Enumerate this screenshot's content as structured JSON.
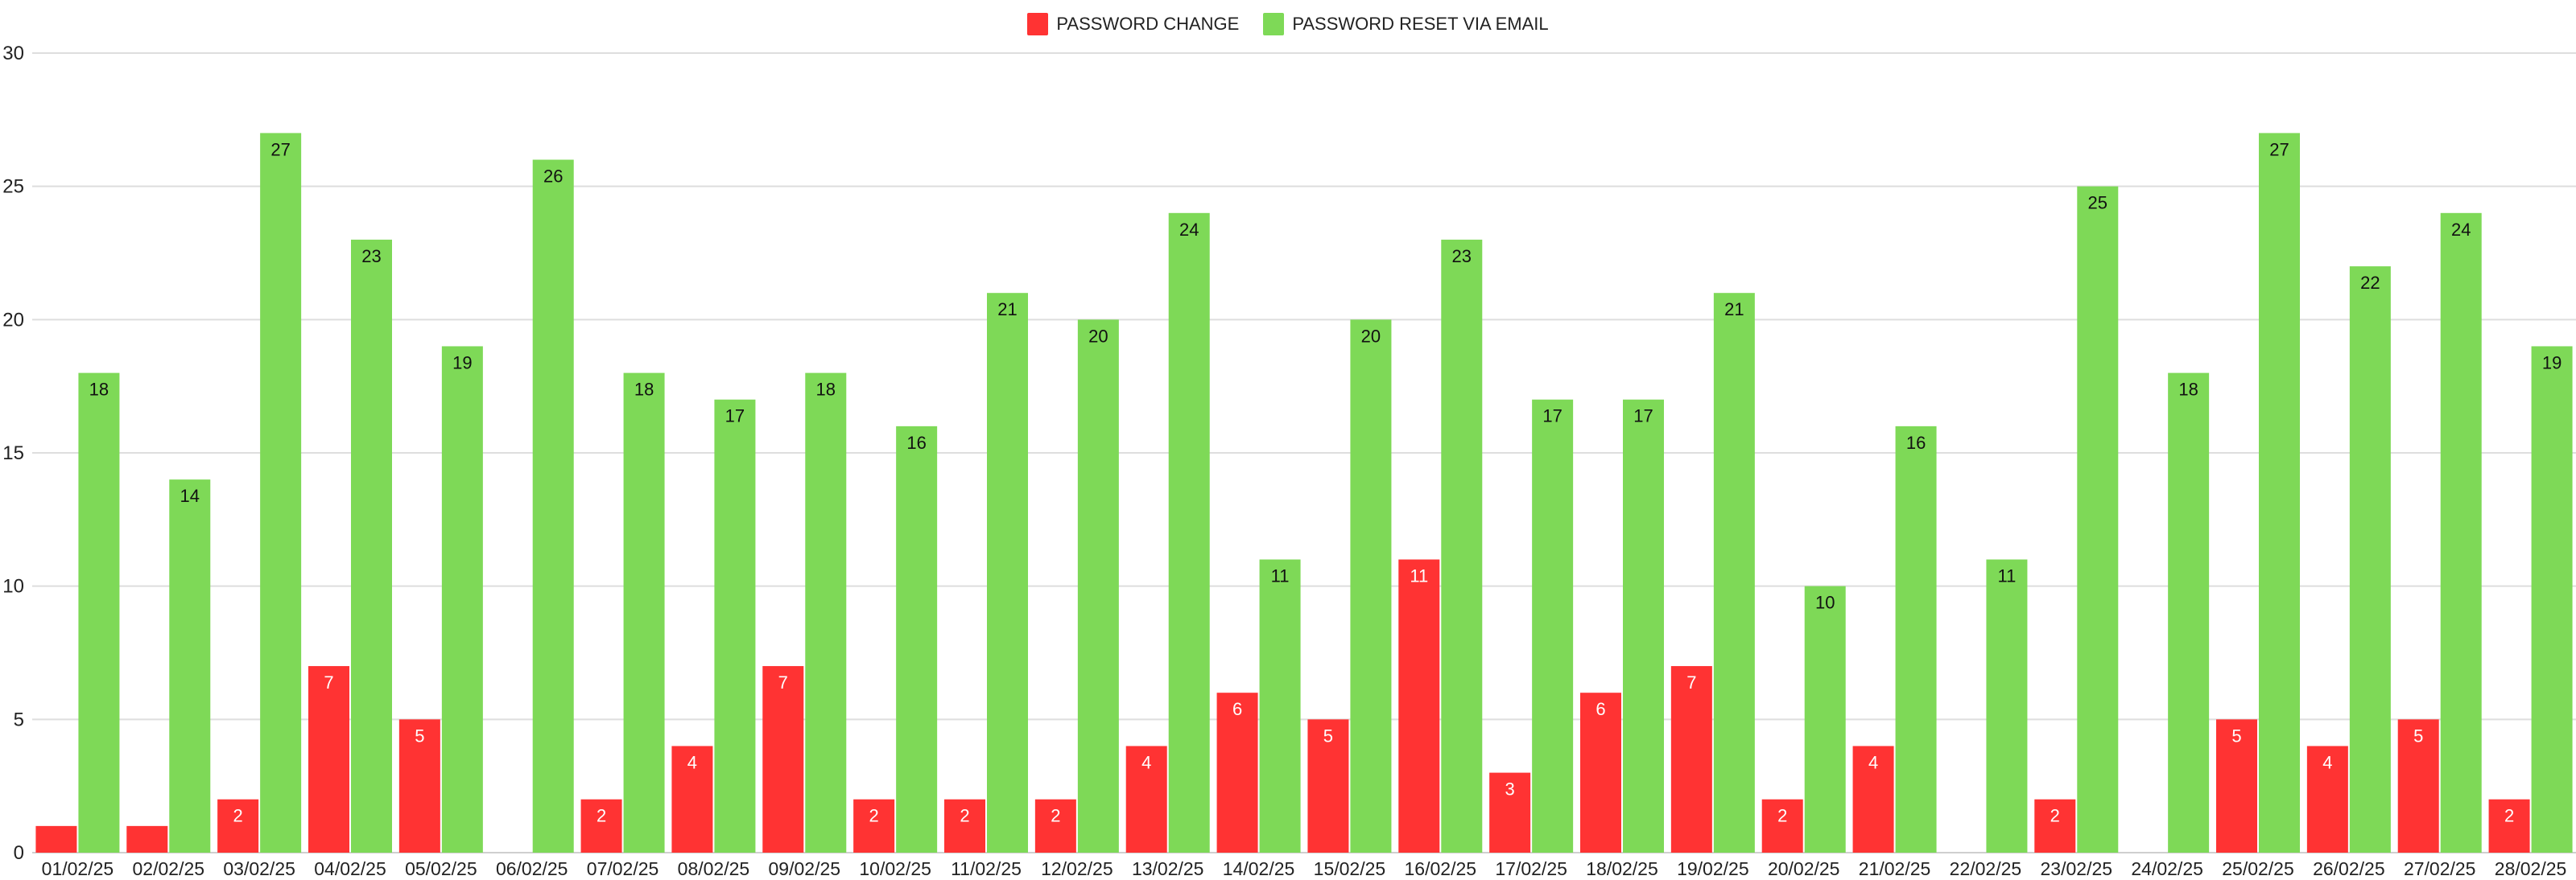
{
  "chart_data": {
    "type": "bar",
    "title": "",
    "xlabel": "",
    "ylabel": "",
    "ylim": [
      0,
      30
    ],
    "yticks": [
      0,
      5,
      10,
      15,
      20,
      25,
      30
    ],
    "grid": true,
    "legend_position": "top-center",
    "categories": [
      "01/02/25",
      "02/02/25",
      "03/02/25",
      "04/02/25",
      "05/02/25",
      "06/02/25",
      "07/02/25",
      "08/02/25",
      "09/02/25",
      "10/02/25",
      "11/02/25",
      "12/02/25",
      "13/02/25",
      "14/02/25",
      "15/02/25",
      "16/02/25",
      "17/02/25",
      "18/02/25",
      "19/02/25",
      "20/02/25",
      "21/02/25",
      "22/02/25",
      "23/02/25",
      "24/02/25",
      "25/02/25",
      "26/02/25",
      "27/02/25",
      "28/02/25"
    ],
    "series": [
      {
        "name": "PASSWORD CHANGE",
        "color": "#ff3333",
        "label_color": "#ffffff",
        "values": [
          1,
          1,
          2,
          7,
          5,
          0,
          2,
          4,
          7,
          2,
          2,
          2,
          4,
          6,
          5,
          11,
          3,
          6,
          7,
          2,
          4,
          0,
          2,
          0,
          5,
          4,
          5,
          2
        ],
        "show_labels": [
          false,
          false,
          true,
          true,
          true,
          false,
          true,
          true,
          true,
          true,
          true,
          true,
          true,
          true,
          true,
          true,
          true,
          true,
          true,
          true,
          true,
          false,
          true,
          false,
          true,
          true,
          true,
          true
        ]
      },
      {
        "name": "PASSWORD RESET VIA EMAIL",
        "color": "#7ed957",
        "label_color": "#111111",
        "values": [
          18,
          14,
          27,
          23,
          19,
          26,
          18,
          17,
          18,
          16,
          21,
          20,
          24,
          11,
          20,
          23,
          17,
          17,
          21,
          10,
          16,
          11,
          25,
          18,
          27,
          22,
          24,
          19
        ],
        "show_labels": [
          true,
          true,
          true,
          true,
          true,
          true,
          true,
          true,
          true,
          true,
          true,
          true,
          true,
          true,
          true,
          true,
          true,
          true,
          true,
          true,
          true,
          true,
          true,
          true,
          true,
          true,
          true,
          true
        ]
      }
    ]
  }
}
